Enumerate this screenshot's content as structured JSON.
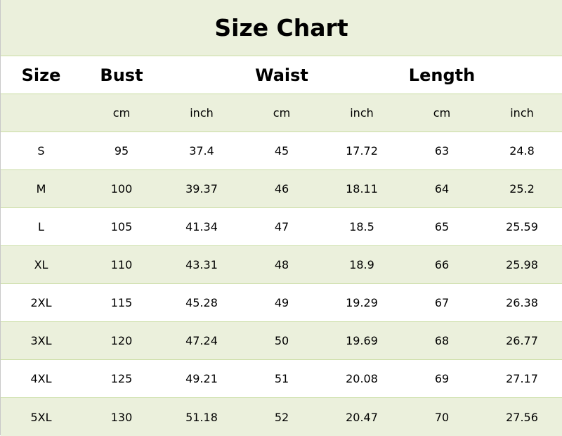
{
  "title": "Size Chart",
  "headers": [
    "Size",
    "Bust",
    "",
    "Waist",
    "",
    "Length",
    ""
  ],
  "units": [
    "",
    "cm",
    "inch",
    "cm",
    "inch",
    "cm",
    "inch"
  ],
  "rows": [
    [
      "S",
      "95",
      "37.4",
      "45",
      "17.72",
      "63",
      "24.8"
    ],
    [
      "M",
      "100",
      "39.37",
      "46",
      "18.11",
      "64",
      "25.2"
    ],
    [
      "L",
      "105",
      "41.34",
      "47",
      "18.5",
      "65",
      "25.59"
    ],
    [
      "XL",
      "110",
      "43.31",
      "48",
      "18.9",
      "66",
      "25.98"
    ],
    [
      "2XL",
      "115",
      "45.28",
      "49",
      "19.29",
      "67",
      "26.38"
    ],
    [
      "3XL",
      "120",
      "47.24",
      "50",
      "19.69",
      "68",
      "26.77"
    ],
    [
      "4XL",
      "125",
      "49.21",
      "51",
      "20.08",
      "69",
      "27.17"
    ],
    [
      "5XL",
      "130",
      "51.18",
      "52",
      "20.47",
      "70",
      "27.56"
    ]
  ],
  "colors": {
    "band": "#ebf0dc",
    "border": "#c9dca2"
  }
}
